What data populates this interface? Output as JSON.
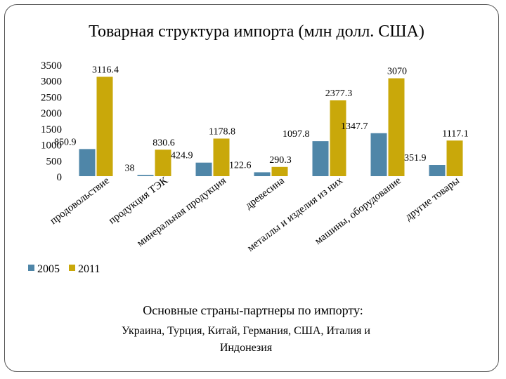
{
  "chart_data": {
    "type": "bar",
    "title": "Товарная структура импорта (млн долл. США)",
    "categories": [
      "продовольствие",
      "продукция ТЭК",
      "минеральная продукция",
      "древесина",
      "металлы и изделия из них",
      "машины, оборудование",
      "другие товары"
    ],
    "series": [
      {
        "name": "2005",
        "color": "#4f86a8",
        "values": [
          850.9,
          38,
          424.9,
          122.6,
          1097.8,
          1347.7,
          351.9
        ]
      },
      {
        "name": "2011",
        "color": "#c9a80a",
        "values": [
          3116.4,
          830.6,
          1178.8,
          290.3,
          2377.3,
          3070,
          1117.1
        ]
      }
    ],
    "ylim": [
      0,
      3500
    ],
    "yticks": [
      0,
      500,
      1000,
      1500,
      2000,
      2500,
      3000,
      3500
    ],
    "grid": false,
    "legend": "bottom-left"
  },
  "footer": {
    "heading": "Основные страны-партнеры по импорту:",
    "lines": [
      "Украина, Турция, Китай, Германия, США, Италия и",
      "Индонезия"
    ]
  }
}
